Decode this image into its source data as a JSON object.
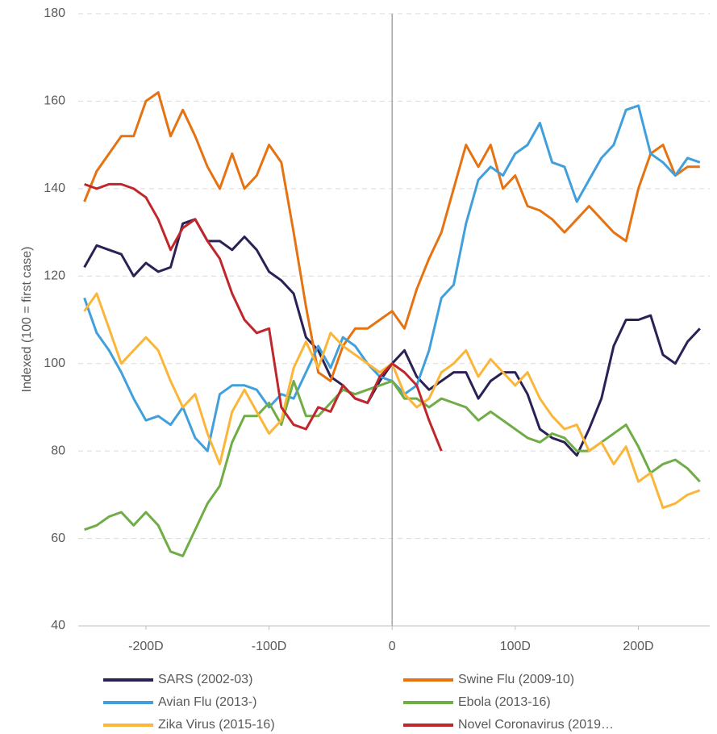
{
  "chart_data": {
    "type": "line",
    "y_label": "Indexed (100 = first case)",
    "xlim": [
      -255,
      258
    ],
    "ylim": [
      40,
      180
    ],
    "xticks": [
      {
        "value": -200,
        "label": "-200D"
      },
      {
        "value": -100,
        "label": "-100D"
      },
      0,
      {
        "value": 100,
        "label": "100D"
      },
      {
        "value": 200,
        "label": "200D"
      }
    ],
    "yticks": [
      40,
      60,
      80,
      100,
      120,
      140,
      160,
      180
    ],
    "grid": true,
    "legend": "bottom",
    "x": [
      -250,
      -240,
      -230,
      -220,
      -210,
      -200,
      -190,
      -180,
      -170,
      -160,
      -150,
      -140,
      -130,
      -120,
      -110,
      -100,
      -90,
      -80,
      -70,
      -60,
      -50,
      -40,
      -30,
      -20,
      -10,
      0,
      10,
      20,
      30,
      40,
      50,
      60,
      70,
      80,
      90,
      100,
      110,
      120,
      130,
      140,
      150,
      160,
      170,
      180,
      190,
      200,
      210,
      220,
      230,
      240,
      250
    ],
    "series": [
      {
        "name": "SARS (2002-03)",
        "color": "#2b2155",
        "values": [
          122,
          127,
          126,
          125,
          120,
          123,
          121,
          122,
          132,
          133,
          128,
          128,
          126,
          129,
          126,
          121,
          119,
          116,
          106,
          103,
          97,
          95,
          92,
          91,
          96,
          100,
          103,
          97,
          94,
          96,
          98,
          98,
          92,
          96,
          98,
          98,
          93,
          85,
          83,
          82,
          79,
          85,
          92,
          104,
          110,
          110,
          111,
          102,
          100,
          105,
          108
        ]
      },
      {
        "name": "Swine Flu (2009-10)",
        "color": "#e57312",
        "values": [
          137,
          144,
          148,
          152,
          152,
          160,
          162,
          152,
          158,
          152,
          145,
          140,
          148,
          140,
          143,
          150,
          146,
          130,
          113,
          98,
          96,
          104,
          108,
          108,
          110,
          112,
          108,
          117,
          124,
          130,
          140,
          150,
          145,
          150,
          140,
          143,
          136,
          135,
          133,
          130,
          133,
          136,
          133,
          130,
          128,
          140,
          148,
          150,
          143,
          145,
          145
        ]
      },
      {
        "name": "Avian Flu (2013-)",
        "color": "#41a0db",
        "values": [
          115,
          107,
          103,
          98,
          92,
          87,
          88,
          86,
          90,
          83,
          80,
          93,
          95,
          95,
          94,
          90,
          93,
          92,
          98,
          104,
          99,
          106,
          104,
          100,
          97,
          96,
          93,
          95,
          103,
          115,
          118,
          132,
          142,
          145,
          143,
          148,
          150,
          155,
          146,
          145,
          137,
          142,
          147,
          150,
          158,
          159,
          148,
          146,
          143,
          147,
          146
        ]
      },
      {
        "name": "Ebola (2013-16)",
        "color": "#70ad47",
        "values": [
          62,
          63,
          65,
          66,
          63,
          66,
          63,
          57,
          56,
          62,
          68,
          72,
          82,
          88,
          88,
          91,
          86,
          96,
          88,
          88,
          91,
          94,
          93,
          94,
          95,
          96,
          92,
          92,
          90,
          92,
          91,
          90,
          87,
          89,
          87,
          85,
          83,
          82,
          84,
          83,
          80,
          80,
          82,
          84,
          86,
          81,
          75,
          77,
          78,
          76,
          73
        ]
      },
      {
        "name": "Zika Virus (2015-16)",
        "color": "#fbb63a",
        "values": [
          112,
          116,
          108,
          100,
          103,
          106,
          103,
          96,
          90,
          93,
          84,
          77,
          89,
          94,
          89,
          84,
          87,
          99,
          105,
          99,
          107,
          104,
          102,
          100,
          98,
          100,
          93,
          90,
          92,
          98,
          100,
          103,
          97,
          101,
          98,
          95,
          98,
          92,
          88,
          85,
          86,
          80,
          82,
          77,
          81,
          73,
          75,
          67,
          68,
          70,
          71
        ]
      },
      {
        "name": "Novel Coronavirus (2019…",
        "color": "#c0272d",
        "values": [
          141,
          140,
          141,
          141,
          140,
          138,
          133,
          126,
          131,
          133,
          128,
          124,
          116,
          110,
          107,
          108,
          90,
          86,
          85,
          90,
          89,
          95,
          92,
          91,
          97,
          100,
          98,
          95,
          87,
          80,
          null,
          null,
          null,
          null,
          null,
          null,
          null,
          null,
          null,
          null,
          null,
          null,
          null,
          null,
          null,
          null,
          null,
          null,
          null,
          null,
          null
        ]
      }
    ]
  }
}
